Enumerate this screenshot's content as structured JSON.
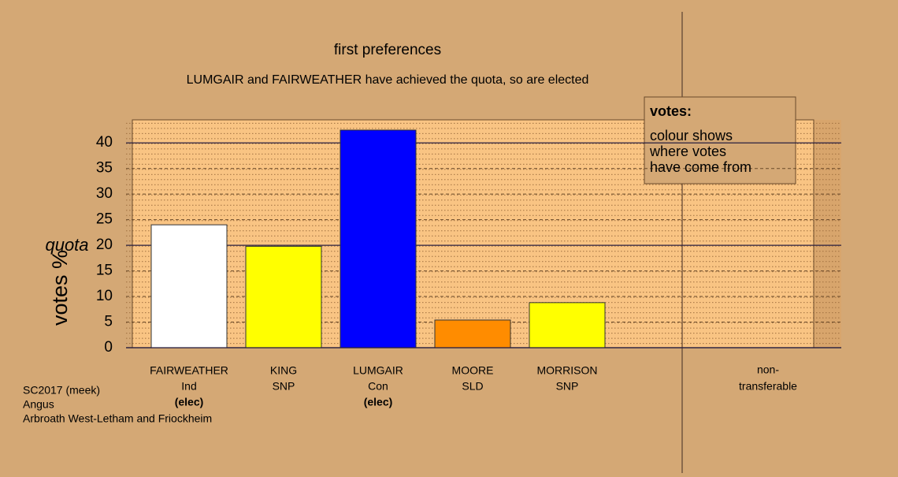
{
  "chart_data": {
    "type": "bar",
    "title": "first preferences",
    "subtitle": "LUMGAIR and FAIRWEATHER have achieved the quota, so are elected",
    "y_label": "votes %",
    "quota_label": "quota",
    "quota": 20,
    "categories": [
      "FAIRWEATHER",
      "KING",
      "LUMGAIR",
      "MOORE",
      "MORRISON"
    ],
    "parties": [
      "Ind",
      "SNP",
      "Con",
      "SLD",
      "SNP"
    ],
    "notes": [
      "(elec)",
      null,
      "(elec)",
      null,
      null
    ],
    "values": [
      24,
      19.8,
      42.5,
      5.4,
      8.8
    ],
    "colors": [
      "#ffffff",
      "#ffff00",
      "#0000ff",
      "#ff8c00",
      "#ffff00"
    ],
    "nontransferable_label": [
      "non-",
      "transferable"
    ],
    "ylim": [
      0,
      44.5
    ],
    "yticks": [
      0,
      5,
      10,
      15,
      20,
      25,
      30,
      35,
      40
    ],
    "grid": true,
    "legend": {
      "title": "votes:",
      "lines": [
        "colour shows",
        "where votes",
        "have come from"
      ]
    },
    "footer": [
      "SC2017 (meek)",
      "Angus",
      "Arbroath West-Letham and Friockheim"
    ]
  }
}
